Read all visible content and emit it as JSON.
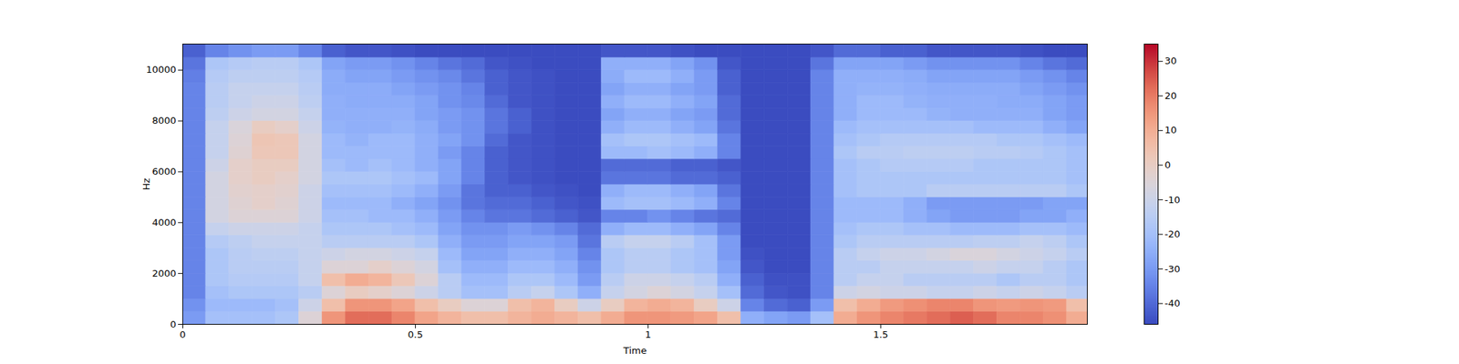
{
  "chart_data": {
    "type": "heatmap",
    "xlabel": "Time",
    "ylabel": "Hz",
    "xlim": [
      0,
      1.944
    ],
    "xticks": [
      0,
      0.5,
      1,
      1.5
    ],
    "ylim": [
      0,
      11025
    ],
    "yticks": [
      0,
      2000,
      4000,
      6000,
      8000,
      10000
    ],
    "x": [
      0,
      0.05,
      0.1,
      0.15,
      0.2,
      0.25,
      0.3,
      0.35,
      0.4,
      0.45,
      0.5,
      0.55,
      0.6,
      0.65,
      0.7,
      0.75,
      0.8,
      0.85,
      0.9,
      0.95,
      1.0,
      1.05,
      1.1,
      1.15,
      1.2,
      1.25,
      1.3,
      1.35,
      1.4,
      1.45,
      1.5,
      1.55,
      1.6,
      1.65,
      1.7,
      1.75,
      1.8,
      1.85,
      1.9,
      1.944
    ],
    "y": [
      0,
      500,
      1000,
      1500,
      2000,
      2500,
      3000,
      3500,
      4000,
      4500,
      5000,
      5500,
      6000,
      6500,
      7000,
      7500,
      8000,
      8500,
      9000,
      9500,
      10000,
      10500,
      11025
    ],
    "cells": [
      [
        -30,
        -20,
        -20,
        -20,
        -18,
        -5,
        15,
        22,
        22,
        18,
        12,
        8,
        5,
        5,
        8,
        10,
        8,
        5,
        10,
        15,
        15,
        14,
        12,
        5,
        -25,
        -28,
        -30,
        -20,
        10,
        15,
        18,
        20,
        22,
        24,
        22,
        18,
        18,
        16,
        10
      ],
      [
        -32,
        -22,
        -22,
        -22,
        -20,
        -10,
        5,
        15,
        15,
        12,
        5,
        0,
        -5,
        -5,
        5,
        8,
        0,
        -10,
        0,
        8,
        10,
        8,
        0,
        -10,
        -35,
        -40,
        -42,
        -30,
        5,
        10,
        14,
        16,
        18,
        18,
        15,
        14,
        15,
        14,
        5
      ],
      [
        -35,
        -20,
        -18,
        -18,
        -18,
        -15,
        -5,
        0,
        -2,
        -5,
        -10,
        -15,
        -20,
        -20,
        -15,
        -12,
        -18,
        -25,
        -12,
        -8,
        -5,
        -8,
        -12,
        -20,
        -40,
        -44,
        -45,
        -35,
        -10,
        -8,
        -10,
        -10,
        -12,
        -12,
        -10,
        -12,
        -10,
        -12,
        -15
      ],
      [
        -35,
        -18,
        -16,
        -16,
        -16,
        -12,
        5,
        10,
        8,
        2,
        -5,
        -15,
        -22,
        -22,
        -18,
        -18,
        -22,
        -30,
        -15,
        -10,
        -10,
        -12,
        -15,
        -25,
        -42,
        -45,
        -45,
        -35,
        -15,
        -12,
        -12,
        -15,
        -15,
        -15,
        -15,
        -18,
        -15,
        -15,
        -18
      ],
      [
        -35,
        -18,
        -15,
        -15,
        -15,
        -12,
        -5,
        -5,
        -2,
        -5,
        -8,
        -20,
        -25,
        -25,
        -22,
        -22,
        -25,
        -32,
        -18,
        -15,
        -15,
        -18,
        -20,
        -28,
        -44,
        -46,
        -46,
        -35,
        -15,
        -15,
        -12,
        -12,
        -12,
        -12,
        -10,
        -12,
        -12,
        -15,
        -18
      ],
      [
        -35,
        -18,
        -15,
        -14,
        -14,
        -12,
        -10,
        -8,
        -8,
        -10,
        -12,
        -22,
        -28,
        -28,
        -25,
        -25,
        -28,
        -35,
        -18,
        -15,
        -15,
        -18,
        -20,
        -30,
        -45,
        -46,
        -46,
        -35,
        -15,
        -12,
        -10,
        -10,
        -8,
        -6,
        -6,
        -8,
        -10,
        -12,
        -15
      ],
      [
        -35,
        -16,
        -14,
        -12,
        -12,
        -12,
        -15,
        -15,
        -15,
        -15,
        -18,
        -25,
        -30,
        -30,
        -28,
        -28,
        -30,
        -38,
        -15,
        -12,
        -12,
        -15,
        -20,
        -30,
        -46,
        -46,
        -46,
        -35,
        -18,
        -15,
        -15,
        -15,
        -15,
        -15,
        -14,
        -14,
        -12,
        -14,
        -18
      ],
      [
        -35,
        -12,
        -10,
        -10,
        -10,
        -12,
        -18,
        -18,
        -18,
        -20,
        -22,
        -28,
        -32,
        -32,
        -30,
        -32,
        -35,
        -40,
        -25,
        -22,
        -22,
        -25,
        -28,
        -35,
        -46,
        -46,
        -46,
        -35,
        -20,
        -18,
        -18,
        -20,
        -20,
        -22,
        -22,
        -22,
        -20,
        -20,
        -22
      ],
      [
        -35,
        -8,
        -5,
        -5,
        -5,
        -10,
        -20,
        -20,
        -22,
        -22,
        -25,
        -30,
        -35,
        -38,
        -38,
        -40,
        -42,
        -44,
        -35,
        -35,
        -32,
        -35,
        -38,
        -40,
        -46,
        -46,
        -46,
        -35,
        -22,
        -22,
        -22,
        -25,
        -28,
        -30,
        -30,
        -30,
        -28,
        -28,
        -25
      ],
      [
        -35,
        -8,
        -4,
        -2,
        -4,
        -10,
        -22,
        -22,
        -22,
        -25,
        -28,
        -32,
        -38,
        -40,
        -40,
        -42,
        -44,
        -45,
        -22,
        -20,
        -20,
        -22,
        -25,
        -35,
        -46,
        -46,
        -46,
        -35,
        -22,
        -22,
        -22,
        -25,
        -30,
        -30,
        -30,
        -30,
        -30,
        -28,
        -28
      ],
      [
        -35,
        -8,
        -3,
        -2,
        -3,
        -10,
        -20,
        -20,
        -20,
        -22,
        -25,
        -30,
        -38,
        -42,
        -42,
        -44,
        -45,
        -46,
        -25,
        -22,
        -22,
        -25,
        -28,
        -38,
        -46,
        -46,
        -46,
        -35,
        -20,
        -18,
        -18,
        -18,
        -15,
        -15,
        -15,
        -15,
        -15,
        -15,
        -18
      ],
      [
        -35,
        -8,
        -2,
        0,
        -2,
        -8,
        -18,
        -18,
        -18,
        -20,
        -22,
        -28,
        -35,
        -42,
        -44,
        -45,
        -46,
        -46,
        -38,
        -38,
        -38,
        -40,
        -40,
        -42,
        -46,
        -46,
        -46,
        -35,
        -20,
        -18,
        -18,
        -18,
        -18,
        -18,
        -18,
        -18,
        -18,
        -18,
        -20
      ],
      [
        -35,
        -10,
        -2,
        0,
        0,
        -8,
        -20,
        -22,
        -20,
        -22,
        -25,
        -28,
        -35,
        -42,
        -44,
        -45,
        -46,
        -46,
        -40,
        -40,
        -40,
        -42,
        -42,
        -44,
        -46,
        -46,
        -46,
        -35,
        -20,
        -18,
        -16,
        -16,
        -16,
        -16,
        -18,
        -18,
        -18,
        -18,
        -20
      ],
      [
        -35,
        -12,
        -4,
        2,
        2,
        -8,
        -22,
        -22,
        -22,
        -22,
        -25,
        -30,
        -35,
        -42,
        -44,
        -45,
        -46,
        -46,
        -22,
        -22,
        -20,
        -22,
        -25,
        -35,
        -46,
        -46,
        -46,
        -35,
        -18,
        -15,
        -15,
        -14,
        -14,
        -14,
        -15,
        -15,
        -16,
        -18,
        -20
      ],
      [
        -35,
        -12,
        -5,
        3,
        2,
        -8,
        -22,
        -24,
        -22,
        -22,
        -25,
        -28,
        -32,
        -40,
        -44,
        -45,
        -46,
        -46,
        -20,
        -18,
        -18,
        -20,
        -22,
        -35,
        -46,
        -46,
        -46,
        -35,
        -20,
        -18,
        -16,
        -16,
        -16,
        -16,
        -16,
        -18,
        -18,
        -20,
        -22
      ],
      [
        -35,
        -12,
        -6,
        0,
        -2,
        -10,
        -24,
        -25,
        -25,
        -24,
        -26,
        -30,
        -32,
        -38,
        -42,
        -45,
        -46,
        -46,
        -25,
        -22,
        -22,
        -25,
        -28,
        -38,
        -46,
        -46,
        -46,
        -35,
        -22,
        -20,
        -20,
        -20,
        -20,
        -20,
        -22,
        -22,
        -22,
        -25,
        -28
      ],
      [
        -35,
        -14,
        -10,
        -8,
        -8,
        -12,
        -25,
        -25,
        -25,
        -25,
        -28,
        -30,
        -32,
        -38,
        -42,
        -45,
        -46,
        -46,
        -28,
        -25,
        -25,
        -28,
        -30,
        -40,
        -46,
        -46,
        -46,
        -35,
        -25,
        -22,
        -22,
        -22,
        -24,
        -25,
        -25,
        -25,
        -25,
        -28,
        -30
      ],
      [
        -35,
        -15,
        -12,
        -10,
        -10,
        -14,
        -25,
        -26,
        -26,
        -26,
        -28,
        -32,
        -34,
        -40,
        -44,
        -45,
        -46,
        -46,
        -25,
        -22,
        -22,
        -25,
        -28,
        -40,
        -46,
        -46,
        -46,
        -35,
        -25,
        -22,
        -22,
        -24,
        -25,
        -25,
        -25,
        -26,
        -26,
        -28,
        -30
      ],
      [
        -35,
        -15,
        -12,
        -12,
        -12,
        -15,
        -26,
        -26,
        -26,
        -28,
        -30,
        -32,
        -35,
        -42,
        -44,
        -45,
        -46,
        -46,
        -28,
        -25,
        -25,
        -28,
        -30,
        -42,
        -46,
        -46,
        -46,
        -35,
        -25,
        -24,
        -24,
        -25,
        -26,
        -26,
        -26,
        -26,
        -28,
        -30,
        -32
      ],
      [
        -36,
        -16,
        -14,
        -14,
        -14,
        -16,
        -26,
        -28,
        -28,
        -30,
        -32,
        -34,
        -38,
        -42,
        -44,
        -45,
        -46,
        -46,
        -26,
        -22,
        -22,
        -25,
        -30,
        -42,
        -46,
        -46,
        -46,
        -35,
        -25,
        -25,
        -25,
        -26,
        -28,
        -28,
        -28,
        -28,
        -30,
        -32,
        -35
      ],
      [
        -38,
        -18,
        -16,
        -15,
        -15,
        -18,
        -28,
        -30,
        -30,
        -32,
        -35,
        -38,
        -40,
        -44,
        -45,
        -46,
        -46,
        -46,
        -25,
        -25,
        -25,
        -28,
        -32,
        -44,
        -46,
        -46,
        -46,
        -38,
        -28,
        -28,
        -28,
        -30,
        -32,
        -32,
        -32,
        -32,
        -35,
        -38,
        -40
      ],
      [
        -42,
        -35,
        -32,
        -30,
        -30,
        -35,
        -42,
        -44,
        -44,
        -45,
        -46,
        -46,
        -46,
        -46,
        -46,
        -46,
        -46,
        -46,
        -44,
        -44,
        -44,
        -45,
        -46,
        -46,
        -46,
        -46,
        -46,
        -44,
        -40,
        -40,
        -42,
        -42,
        -44,
        -44,
        -44,
        -44,
        -45,
        -46,
        -46
      ]
    ],
    "colorbar": {
      "range": [
        -46,
        35
      ],
      "ticks": [
        -40,
        -30,
        -20,
        -10,
        0,
        10,
        20,
        30
      ]
    }
  }
}
